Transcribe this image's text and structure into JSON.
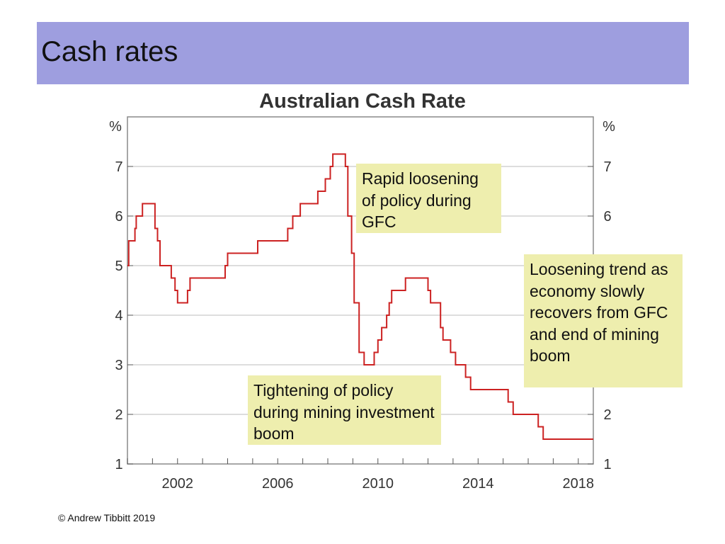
{
  "slide": {
    "title": "Cash rates",
    "copyright": "© Andrew Tibbitt 2019"
  },
  "annotations": {
    "gfc": "Rapid loosening of policy during GFC",
    "mining_boom": "Tightening of policy during mining investment boom",
    "recovery": "Loosening trend as economy slowly recovers from GFC and end of mining boom"
  },
  "colors": {
    "title_bar": "#9e9edf",
    "series_line": "#cc2222",
    "annotation_bg": "#eeeeae",
    "grid": "#bbbbbb"
  },
  "chart_data": {
    "type": "line",
    "title": "Australian Cash Rate",
    "ylabel_left": "%",
    "ylabel_right": "%",
    "xlim": [
      2000.0,
      2018.6
    ],
    "ylim": [
      1,
      8
    ],
    "x_ticks": [
      2002,
      2006,
      2010,
      2014,
      2018
    ],
    "y_ticks": [
      1,
      2,
      3,
      4,
      5,
      6,
      7
    ],
    "grid": true,
    "step": true,
    "series": [
      {
        "name": "Cash rate",
        "points": [
          [
            2000.0,
            5.0
          ],
          [
            2000.05,
            5.5
          ],
          [
            2000.3,
            5.75
          ],
          [
            2000.35,
            6.0
          ],
          [
            2000.6,
            6.25
          ],
          [
            2001.1,
            5.75
          ],
          [
            2001.2,
            5.5
          ],
          [
            2001.3,
            5.0
          ],
          [
            2001.75,
            4.75
          ],
          [
            2001.9,
            4.5
          ],
          [
            2002.0,
            4.25
          ],
          [
            2002.4,
            4.5
          ],
          [
            2002.5,
            4.75
          ],
          [
            2003.9,
            5.0
          ],
          [
            2004.0,
            5.25
          ],
          [
            2005.2,
            5.5
          ],
          [
            2006.4,
            5.75
          ],
          [
            2006.6,
            6.0
          ],
          [
            2006.9,
            6.25
          ],
          [
            2007.6,
            6.5
          ],
          [
            2007.9,
            6.75
          ],
          [
            2008.1,
            7.0
          ],
          [
            2008.2,
            7.25
          ],
          [
            2008.7,
            7.0
          ],
          [
            2008.8,
            6.0
          ],
          [
            2008.95,
            5.25
          ],
          [
            2009.05,
            4.25
          ],
          [
            2009.25,
            3.25
          ],
          [
            2009.45,
            3.0
          ],
          [
            2009.85,
            3.25
          ],
          [
            2010.0,
            3.5
          ],
          [
            2010.15,
            3.75
          ],
          [
            2010.35,
            4.0
          ],
          [
            2010.45,
            4.25
          ],
          [
            2010.55,
            4.5
          ],
          [
            2011.1,
            4.75
          ],
          [
            2012.0,
            4.5
          ],
          [
            2012.1,
            4.25
          ],
          [
            2012.5,
            3.75
          ],
          [
            2012.6,
            3.5
          ],
          [
            2012.9,
            3.25
          ],
          [
            2013.1,
            3.0
          ],
          [
            2013.5,
            2.75
          ],
          [
            2013.7,
            2.5
          ],
          [
            2015.2,
            2.25
          ],
          [
            2015.4,
            2.0
          ],
          [
            2016.4,
            1.75
          ],
          [
            2016.6,
            1.5
          ],
          [
            2018.6,
            1.5
          ]
        ]
      }
    ]
  }
}
